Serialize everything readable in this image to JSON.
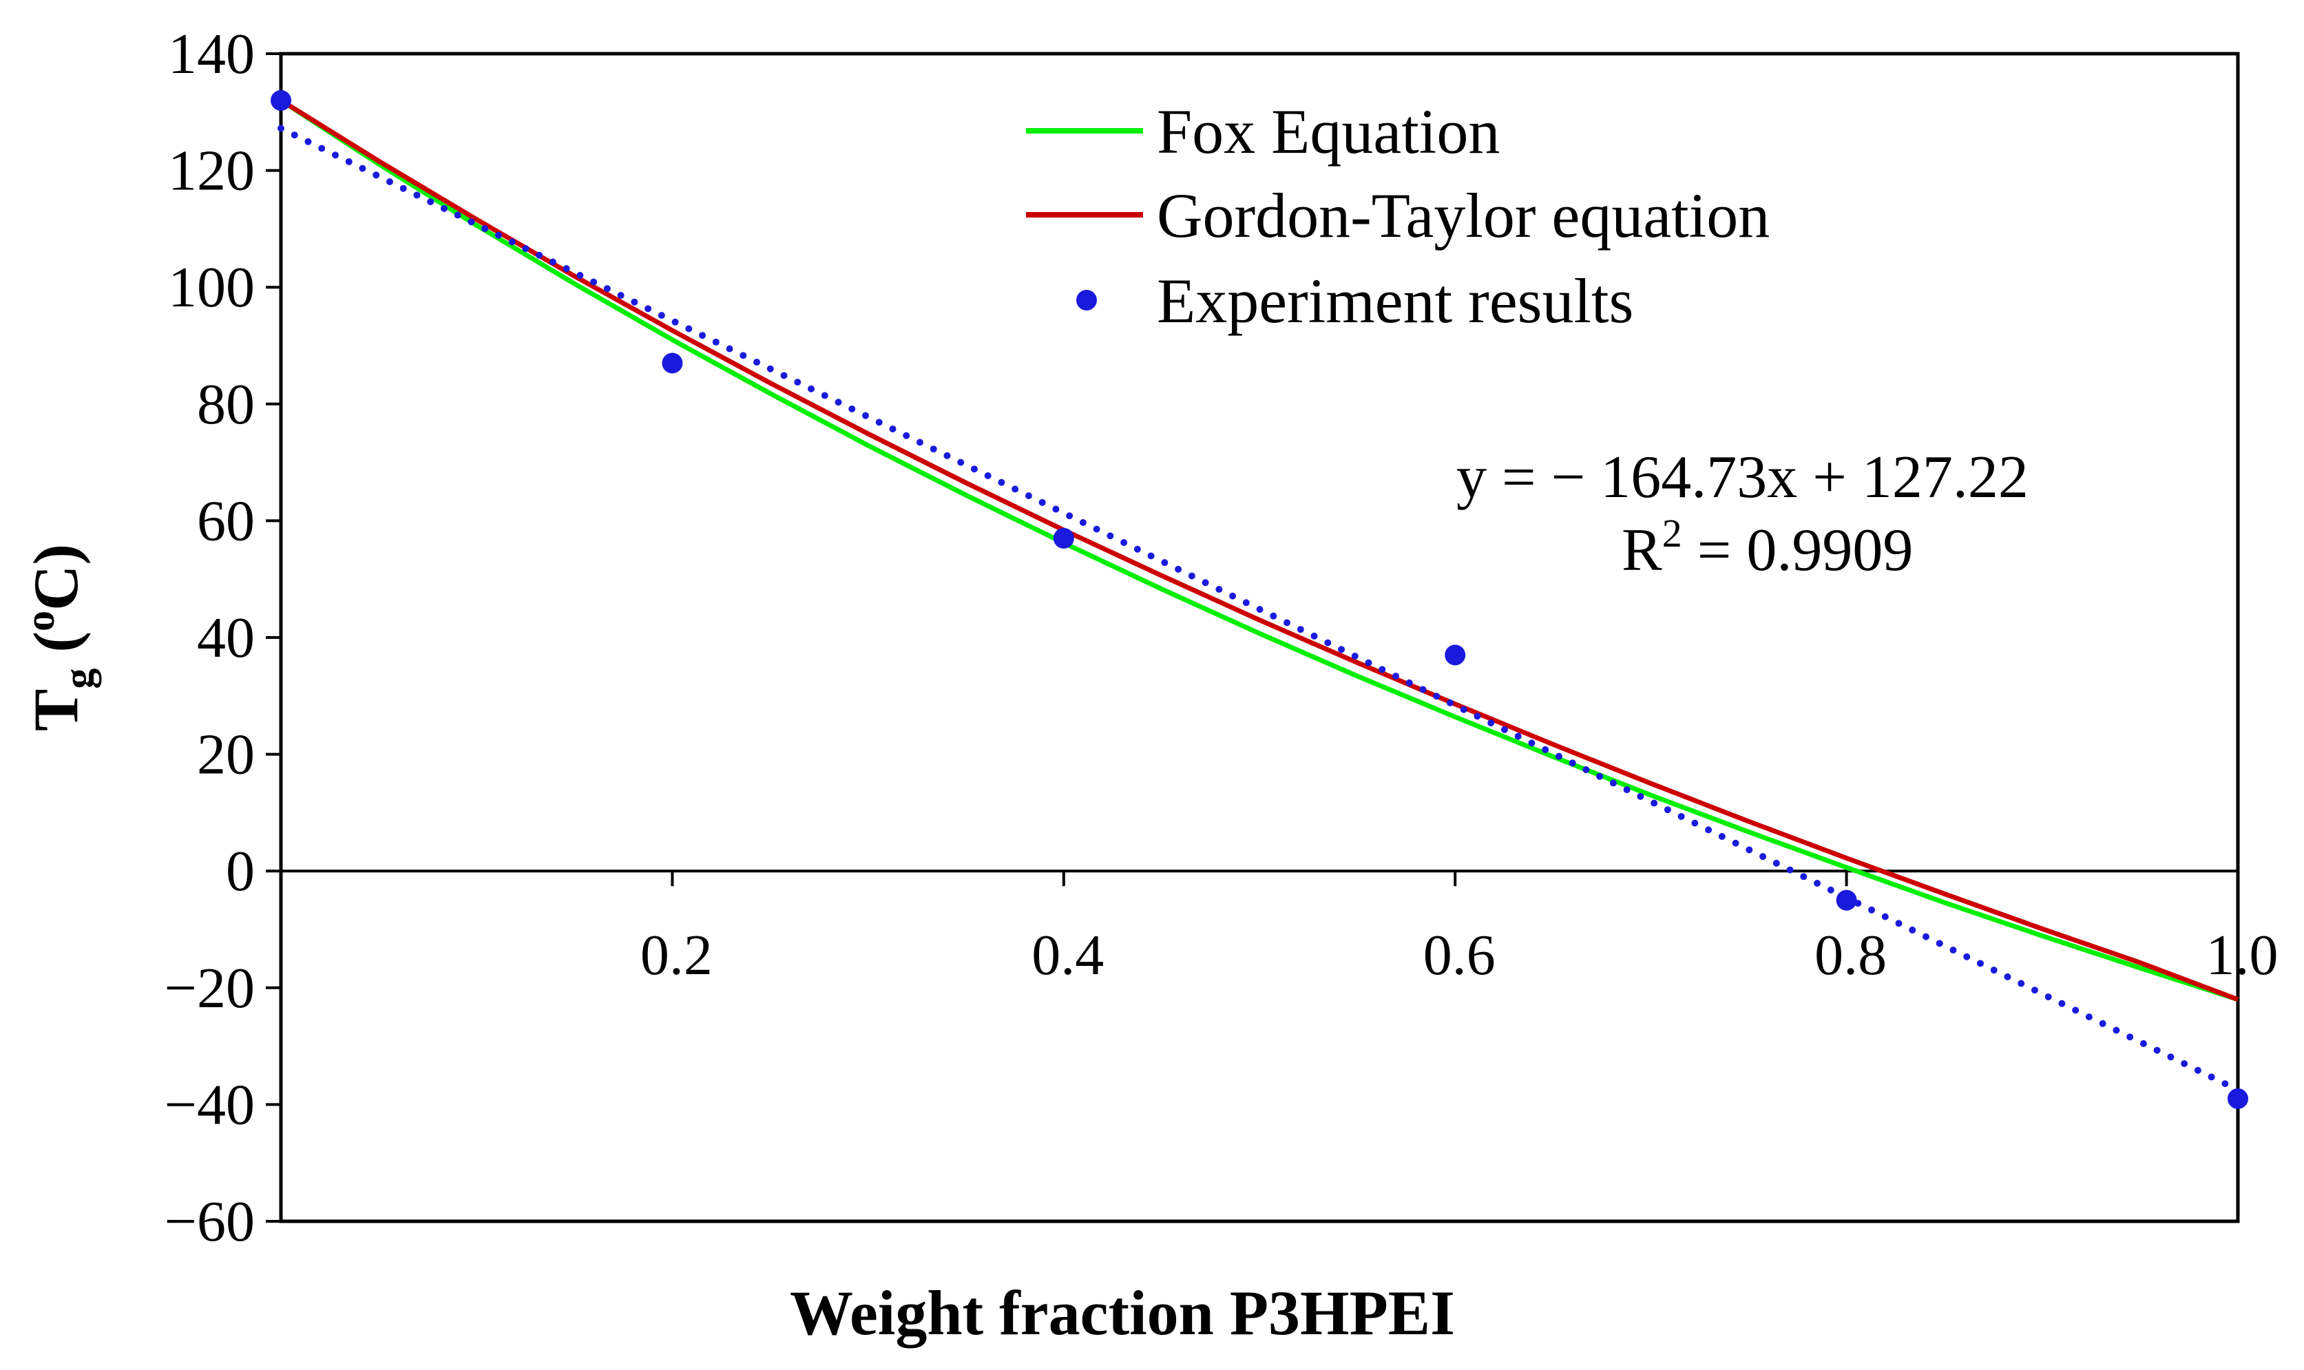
{
  "chart_data": {
    "type": "line",
    "title": "",
    "xlabel": "Weight fraction P3HPEI",
    "ylabel": {
      "main": "T",
      "sub": "g",
      "unit_open": " (",
      "unit_sup": "o",
      "unit_rest": "C)"
    },
    "xlim": [
      0,
      1.0
    ],
    "ylim": [
      -60,
      140
    ],
    "x_ticks": [
      {
        "value": 0.2,
        "label": "0.2"
      },
      {
        "value": 0.4,
        "label": "0.4"
      },
      {
        "value": 0.6,
        "label": "0.6"
      },
      {
        "value": 0.8,
        "label": "0.8"
      },
      {
        "value": 1.0,
        "label": "1.0"
      }
    ],
    "y_ticks": [
      {
        "value": 140,
        "label": "140"
      },
      {
        "value": 120,
        "label": "120"
      },
      {
        "value": 100,
        "label": "100"
      },
      {
        "value": 80,
        "label": "80"
      },
      {
        "value": 60,
        "label": "60"
      },
      {
        "value": 40,
        "label": "40"
      },
      {
        "value": 20,
        "label": "20"
      },
      {
        "value": 0,
        "label": "0"
      },
      {
        "value": -20,
        "label": "−20"
      },
      {
        "value": -40,
        "label": "−40"
      },
      {
        "value": -60,
        "label": "−60"
      }
    ],
    "legend_position": "top-center",
    "series": [
      {
        "name": "Fox Equation",
        "kind": "line",
        "color": "#00ee00",
        "x": [
          0,
          0.05,
          0.1,
          0.15,
          0.2,
          0.25,
          0.3,
          0.35,
          0.4,
          0.45,
          0.5,
          0.55,
          0.6,
          0.65,
          0.7,
          0.75,
          0.8,
          0.85,
          0.9,
          0.95,
          1.0
        ],
        "y": [
          132.0,
          121.1,
          110.6,
          100.6,
          91.0,
          81.8,
          72.9,
          64.4,
          56.2,
          48.3,
          40.7,
          33.4,
          26.4,
          19.6,
          13.0,
          6.7,
          0.6,
          -5.4,
          -11.1,
          -16.6,
          -22.0
        ]
      },
      {
        "name": "Gordon-Taylor equation",
        "kind": "line",
        "color": "#cc0000",
        "x": [
          0,
          0.05,
          0.1,
          0.15,
          0.2,
          0.25,
          0.3,
          0.35,
          0.4,
          0.45,
          0.5,
          0.55,
          0.6,
          0.65,
          0.7,
          0.75,
          0.8,
          0.85,
          0.9,
          0.95,
          1.0
        ],
        "y": [
          132.0,
          121.6,
          111.6,
          101.9,
          92.6,
          83.6,
          74.9,
          66.5,
          58.4,
          50.6,
          43.0,
          35.7,
          28.6,
          21.7,
          15.0,
          8.5,
          2.2,
          -3.9,
          -9.9,
          -15.7,
          -22.0
        ]
      },
      {
        "name": "Experiment results",
        "kind": "scatter",
        "color": "#1a1adc",
        "x": [
          0.0,
          0.2,
          0.4,
          0.6,
          0.8,
          1.0
        ],
        "y": [
          132,
          87,
          57,
          37,
          -5,
          -39
        ]
      }
    ],
    "trendline": {
      "color": "#1a1adc",
      "style": "dotted",
      "slope": -164.73,
      "intercept": 127.22,
      "equation_label": "y = − 164.73x  + 127.22",
      "r2_prefix": "R",
      "r2_sup": "2",
      "r2_value": " = 0.9909"
    }
  }
}
